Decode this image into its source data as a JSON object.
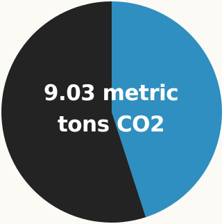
{
  "chart_data": {
    "type": "pie",
    "title": "",
    "center_label": {
      "line1": "9.03 metric",
      "line2": "tons CO2"
    },
    "slices": [
      {
        "value": 45,
        "color": "#2f8fc0"
      },
      {
        "value": 55,
        "color": "#232323"
      }
    ],
    "start": "top",
    "direction": "clockwise"
  }
}
